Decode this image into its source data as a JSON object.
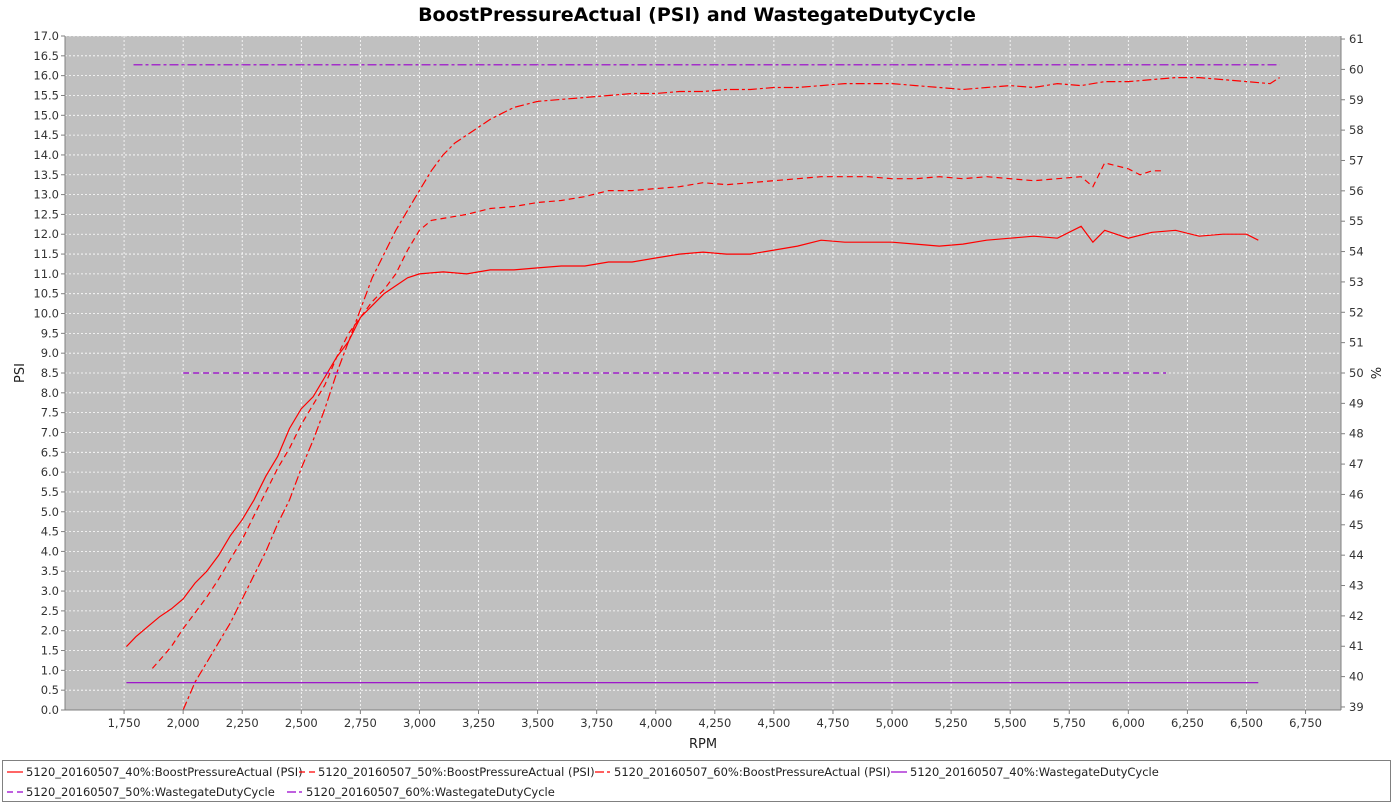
{
  "chart_data": {
    "type": "line",
    "title": "BoostPressureActual (PSI) and WastegateDutyCycle",
    "xlabel": "RPM",
    "ylabel": "PSI",
    "y2label": "%",
    "xlim": [
      1500,
      6900
    ],
    "ylim": [
      0,
      17
    ],
    "y2lim": [
      38.9,
      61.1
    ],
    "xticks": [
      1750,
      2000,
      2250,
      2500,
      2750,
      3000,
      3250,
      3500,
      3750,
      4000,
      4250,
      4500,
      4750,
      5000,
      5250,
      5500,
      5750,
      6000,
      6250,
      6500,
      6750
    ],
    "xtick_labels": [
      "1,750",
      "2,000",
      "2,250",
      "2,500",
      "2,750",
      "3,000",
      "3,250",
      "3,500",
      "3,750",
      "4,000",
      "4,250",
      "4,500",
      "4,750",
      "5,000",
      "5,250",
      "5,500",
      "5,750",
      "6,000",
      "6,250",
      "6,500",
      "6,750"
    ],
    "yticks": [
      0.0,
      0.5,
      1.0,
      1.5,
      2.0,
      2.5,
      3.0,
      3.5,
      4.0,
      4.5,
      5.0,
      5.5,
      6.0,
      6.5,
      7.0,
      7.5,
      8.0,
      8.5,
      9.0,
      9.5,
      10.0,
      10.5,
      11.0,
      11.5,
      12.0,
      12.5,
      13.0,
      13.5,
      14.0,
      14.5,
      15.0,
      15.5,
      16.0,
      16.5,
      17.0
    ],
    "ytick_labels": [
      "0.0",
      "0.5",
      "1.0",
      "1.5",
      "2.0",
      "2.5",
      "3.0",
      "3.5",
      "4.0",
      "4.5",
      "5.0",
      "5.5",
      "6.0",
      "6.5",
      "7.0",
      "7.5",
      "8.0",
      "8.5",
      "9.0",
      "9.5",
      "10.0",
      "10.5",
      "11.0",
      "11.5",
      "12.0",
      "12.5",
      "13.0",
      "13.5",
      "14.0",
      "14.5",
      "15.0",
      "15.5",
      "16.0",
      "16.5",
      "17.0"
    ],
    "y2ticks": [
      39,
      40,
      41,
      42,
      43,
      44,
      45,
      46,
      47,
      48,
      49,
      50,
      51,
      52,
      53,
      54,
      55,
      56,
      57,
      58,
      59,
      60,
      61
    ],
    "y2tick_labels": [
      "39",
      "40",
      "41",
      "42",
      "43",
      "44",
      "45",
      "46",
      "47",
      "48",
      "49",
      "50",
      "51",
      "52",
      "53",
      "54",
      "55",
      "56",
      "57",
      "58",
      "59",
      "60",
      "61"
    ],
    "grid": true,
    "legend_position": "bottom",
    "series": [
      {
        "name": "5120_20160507_40%:BoostPressureActual (PSI)",
        "axis": "left",
        "color": "#ff0000",
        "dash": "solid",
        "x": [
          1760,
          1800,
          1850,
          1900,
          1950,
          2000,
          2050,
          2100,
          2150,
          2200,
          2250,
          2300,
          2350,
          2400,
          2450,
          2500,
          2550,
          2600,
          2650,
          2700,
          2750,
          2800,
          2850,
          2900,
          2950,
          3000,
          3100,
          3200,
          3300,
          3400,
          3500,
          3600,
          3700,
          3800,
          3900,
          4000,
          4100,
          4200,
          4300,
          4400,
          4500,
          4600,
          4700,
          4800,
          4900,
          5000,
          5100,
          5200,
          5300,
          5400,
          5500,
          5600,
          5700,
          5800,
          5850,
          5900,
          6000,
          6100,
          6200,
          6300,
          6400,
          6500,
          6550
        ],
        "y": [
          1.6,
          1.85,
          2.1,
          2.35,
          2.55,
          2.8,
          3.2,
          3.5,
          3.9,
          4.4,
          4.8,
          5.3,
          5.9,
          6.4,
          7.1,
          7.6,
          7.9,
          8.4,
          8.9,
          9.3,
          9.9,
          10.2,
          10.5,
          10.7,
          10.9,
          11.0,
          11.05,
          11.0,
          11.1,
          11.1,
          11.15,
          11.2,
          11.2,
          11.3,
          11.3,
          11.4,
          11.5,
          11.55,
          11.5,
          11.5,
          11.6,
          11.7,
          11.85,
          11.8,
          11.8,
          11.8,
          11.75,
          11.7,
          11.75,
          11.85,
          11.9,
          11.95,
          11.9,
          12.2,
          11.8,
          12.1,
          11.9,
          12.05,
          12.1,
          11.95,
          12.0,
          12.0,
          11.85
        ]
      },
      {
        "name": "5120_20160507_50%:BoostPressureActual (PSI)",
        "axis": "left",
        "color": "#ff0000",
        "dash": "6,4",
        "x": [
          1870,
          1900,
          1950,
          2000,
          2050,
          2100,
          2150,
          2200,
          2250,
          2300,
          2350,
          2400,
          2450,
          2500,
          2550,
          2600,
          2650,
          2700,
          2750,
          2800,
          2850,
          2900,
          2950,
          3000,
          3050,
          3100,
          3200,
          3300,
          3400,
          3500,
          3600,
          3700,
          3800,
          3900,
          4000,
          4100,
          4200,
          4300,
          4400,
          4500,
          4600,
          4700,
          4800,
          4900,
          5000,
          5100,
          5200,
          5300,
          5400,
          5500,
          5600,
          5700,
          5800,
          5850,
          5900,
          6000,
          6050,
          6100,
          6150
        ],
        "y": [
          1.05,
          1.25,
          1.6,
          2.05,
          2.45,
          2.85,
          3.3,
          3.8,
          4.3,
          4.9,
          5.5,
          6.1,
          6.6,
          7.2,
          7.7,
          8.2,
          8.9,
          9.5,
          9.9,
          10.3,
          10.6,
          11.0,
          11.6,
          12.1,
          12.35,
          12.4,
          12.5,
          12.65,
          12.7,
          12.8,
          12.85,
          12.95,
          13.1,
          13.1,
          13.15,
          13.2,
          13.3,
          13.25,
          13.3,
          13.35,
          13.4,
          13.45,
          13.45,
          13.45,
          13.4,
          13.4,
          13.45,
          13.4,
          13.45,
          13.4,
          13.35,
          13.4,
          13.45,
          13.2,
          13.8,
          13.65,
          13.5,
          13.6,
          13.6
        ]
      },
      {
        "name": "5120_20160507_60%:BoostPressureActual (PSI)",
        "axis": "left",
        "color": "#ff0000",
        "dash": "9,3,3,3",
        "x": [
          2000,
          2050,
          2100,
          2150,
          2200,
          2250,
          2300,
          2350,
          2400,
          2450,
          2500,
          2550,
          2600,
          2650,
          2700,
          2750,
          2800,
          2850,
          2900,
          2950,
          3000,
          3050,
          3100,
          3150,
          3200,
          3250,
          3300,
          3350,
          3400,
          3500,
          3600,
          3700,
          3800,
          3900,
          4000,
          4100,
          4200,
          4300,
          4400,
          4500,
          4600,
          4700,
          4800,
          4900,
          5000,
          5100,
          5200,
          5300,
          5400,
          5500,
          5600,
          5700,
          5800,
          5900,
          6000,
          6100,
          6200,
          6300,
          6400,
          6500,
          6600,
          6640
        ],
        "y": [
          0.0,
          0.7,
          1.2,
          1.7,
          2.2,
          2.8,
          3.4,
          4.0,
          4.7,
          5.3,
          6.1,
          6.8,
          7.6,
          8.5,
          9.3,
          10.1,
          10.9,
          11.5,
          12.1,
          12.6,
          13.1,
          13.6,
          14.0,
          14.3,
          14.5,
          14.7,
          14.9,
          15.05,
          15.2,
          15.35,
          15.4,
          15.45,
          15.5,
          15.55,
          15.55,
          15.6,
          15.6,
          15.65,
          15.65,
          15.7,
          15.7,
          15.75,
          15.8,
          15.8,
          15.8,
          15.75,
          15.7,
          15.65,
          15.7,
          15.75,
          15.7,
          15.8,
          15.75,
          15.85,
          15.85,
          15.9,
          15.95,
          15.95,
          15.9,
          15.85,
          15.8,
          15.95
        ]
      },
      {
        "name": "5120_20160507_40%:WastegateDutyCycle",
        "axis": "right",
        "color": "#9900cc",
        "dash": "solid",
        "x": [
          1760,
          6550
        ],
        "y": [
          39.8,
          39.8
        ]
      },
      {
        "name": "5120_20160507_50%:WastegateDutyCycle",
        "axis": "right",
        "color": "#9900cc",
        "dash": "6,4",
        "x": [
          2000,
          6160
        ],
        "y": [
          50.0,
          50.0
        ]
      },
      {
        "name": "5120_20160507_60%:WastegateDutyCycle",
        "axis": "right",
        "color": "#9900cc",
        "dash": "9,3,3,3",
        "x": [
          1790,
          6640
        ],
        "y": [
          60.15,
          60.15
        ]
      }
    ]
  }
}
